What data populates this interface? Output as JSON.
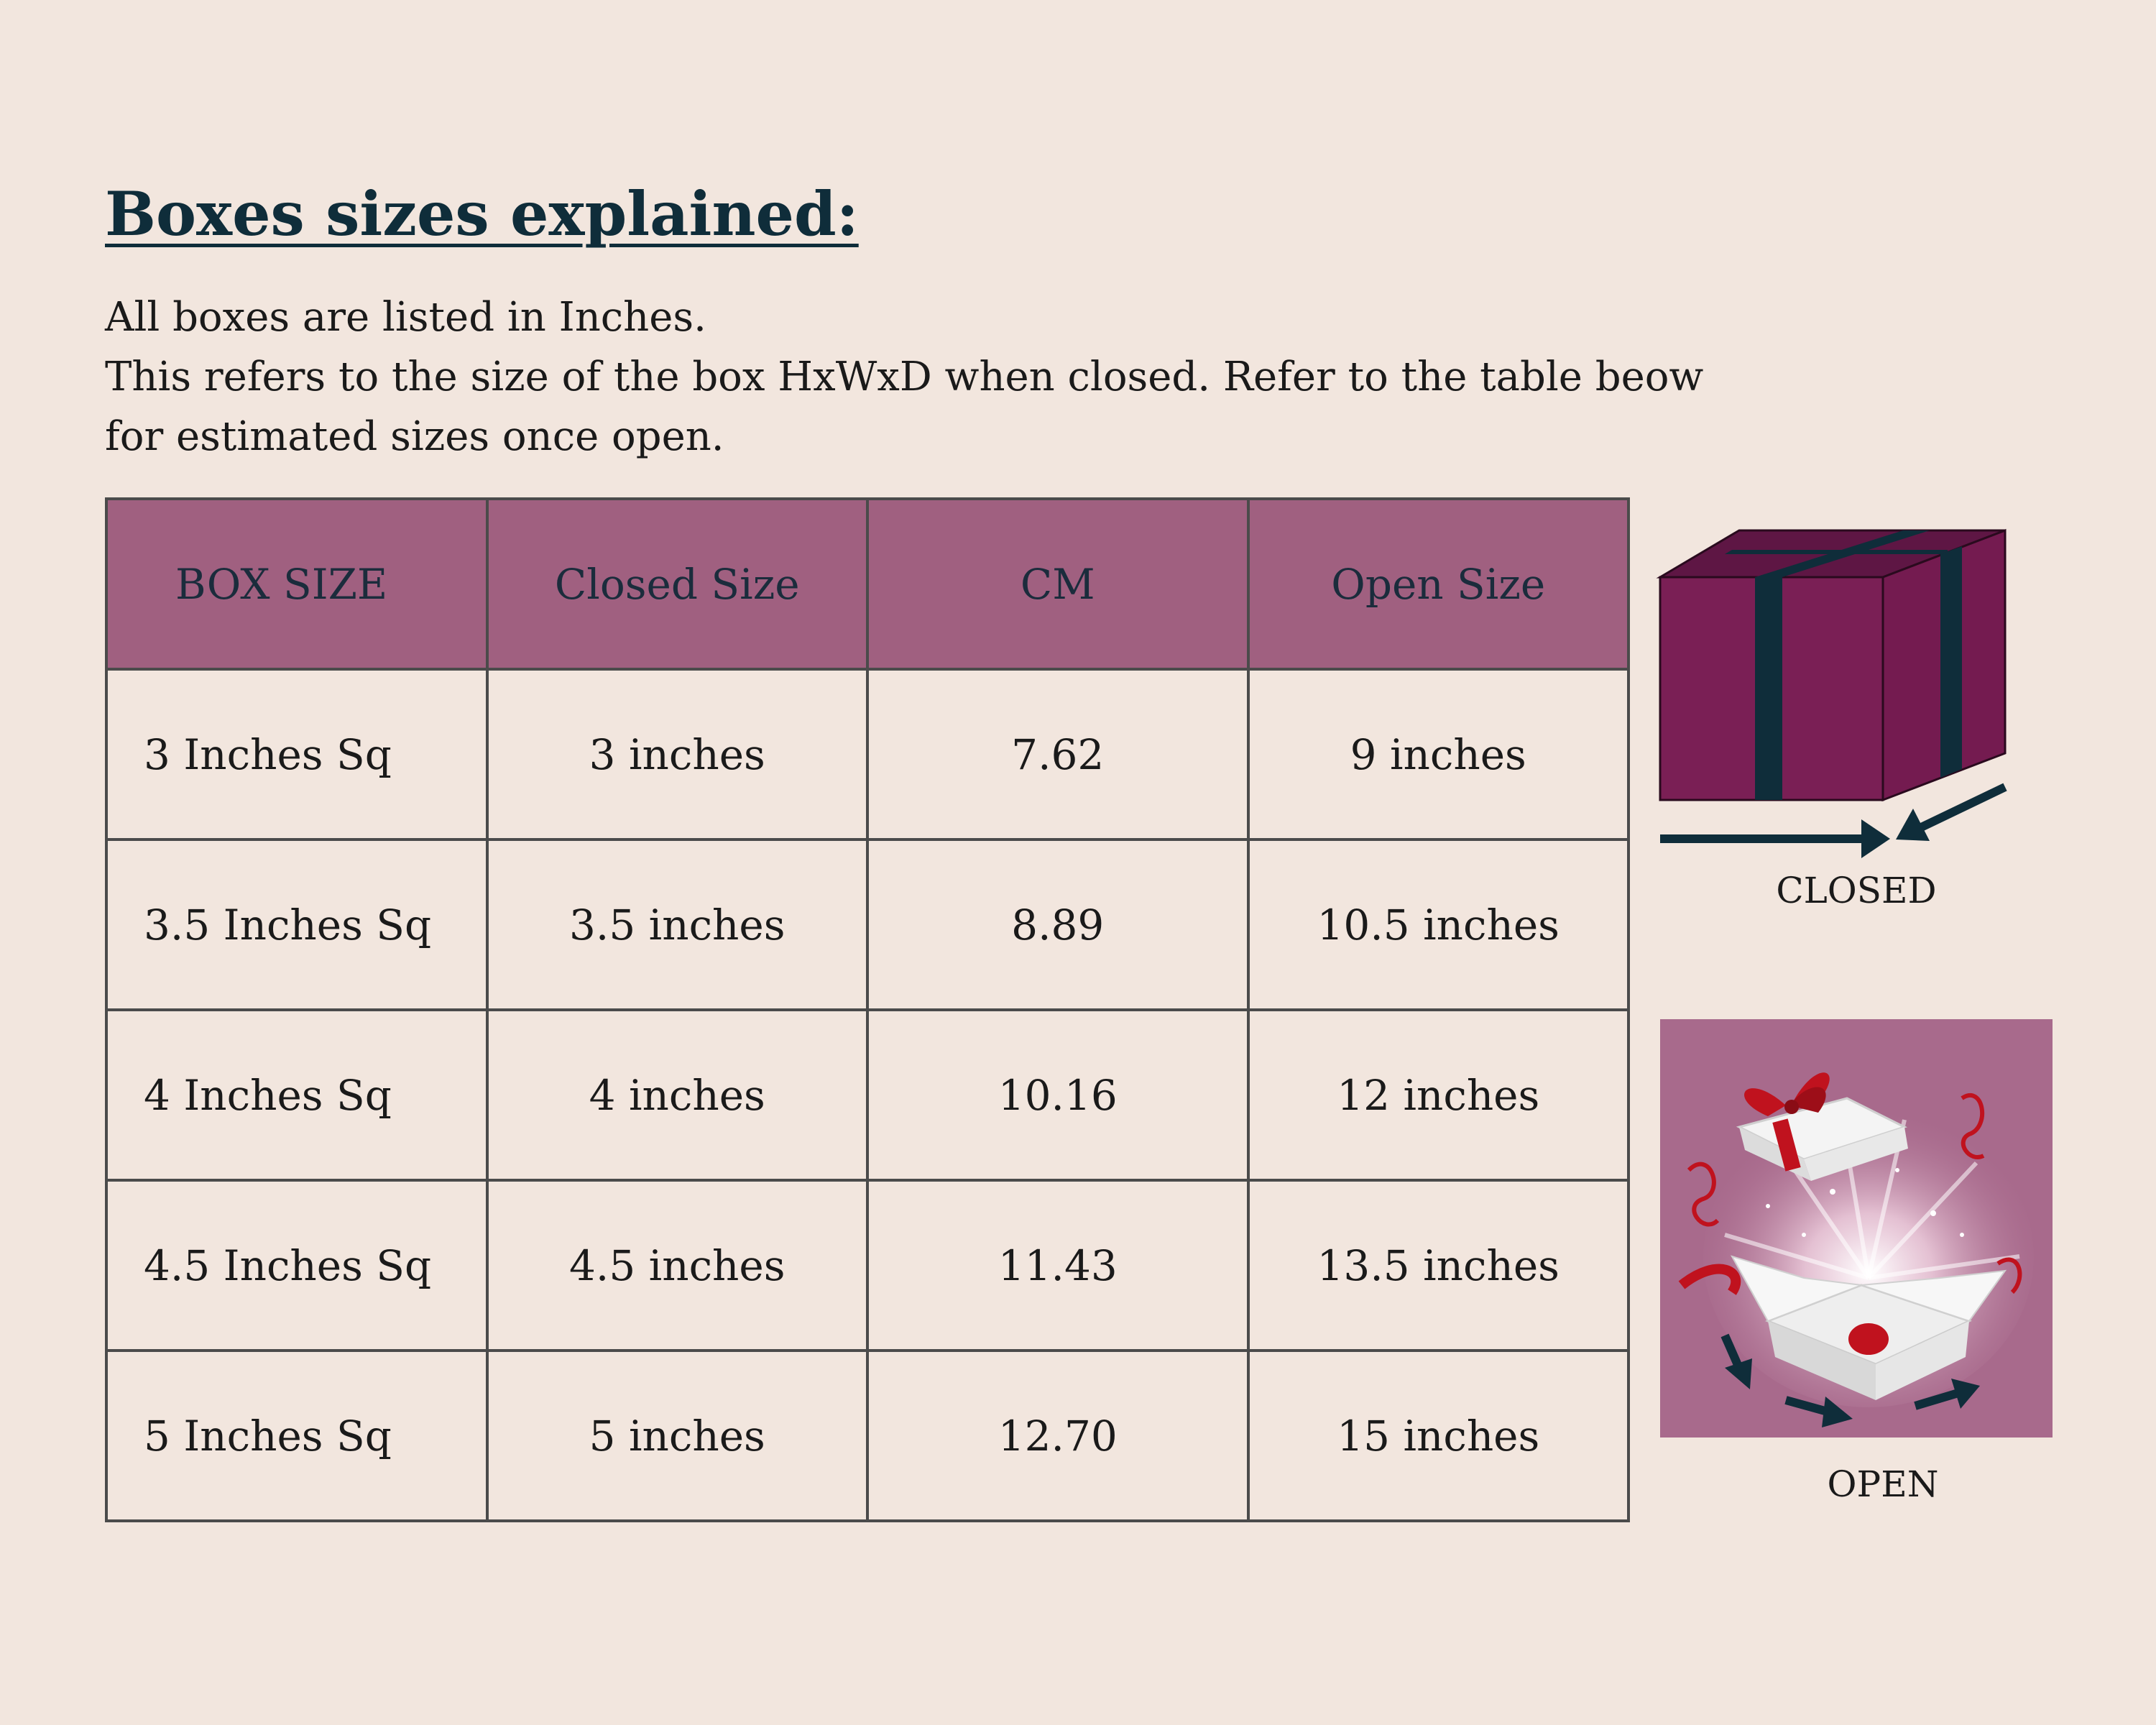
{
  "title": "Boxes sizes explained:",
  "intro": {
    "line1": "All boxes are listed in Inches.",
    "line2": "This refers to the size of the box HxWxD when closed. Refer to the table beow",
    "line3": "for estimated sizes once open."
  },
  "table": {
    "headers": [
      "BOX SIZE",
      "Closed Size",
      "CM",
      "Open Size"
    ],
    "rows": [
      [
        "3 Inches Sq",
        "3 inches",
        "7.62",
        "9 inches"
      ],
      [
        "3.5 Inches Sq",
        "3.5 inches",
        "8.89",
        "10.5 inches"
      ],
      [
        "4 Inches Sq",
        "4 inches",
        "10.16",
        "12 inches"
      ],
      [
        "4.5 Inches Sq",
        "4.5 inches",
        "11.43",
        "13.5 inches"
      ],
      [
        "5 Inches Sq",
        "5 inches",
        "12.70",
        "15 inches"
      ]
    ]
  },
  "illustrations": {
    "closed_label": "CLOSED",
    "open_label": "OPEN",
    "closed_icon": "closed-gift-box-icon",
    "open_icon": "open-gift-box-icon"
  },
  "colors": {
    "background": "#f2e6de",
    "header_fill": "#a06080",
    "title": "#0f2d3a",
    "box_purple": "#7a1f55",
    "ribbon_dark": "#0f2d3a",
    "open_panel": "#a86a8c",
    "ribbon_red": "#c0121e"
  }
}
